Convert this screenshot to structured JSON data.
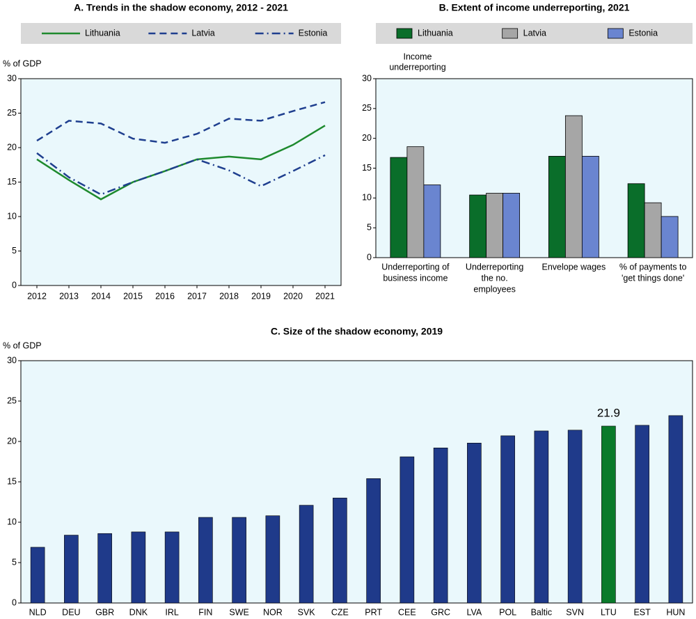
{
  "chart_data": [
    {
      "type": "line",
      "title": "A. Trends in the shadow economy, 2012 - 2021",
      "y_label": "% of GDP",
      "x": [
        2012,
        2013,
        2014,
        2015,
        2016,
        2017,
        2018,
        2019,
        2020,
        2021
      ],
      "series": [
        {
          "name": "Lithuania",
          "color": "#1e8a2e",
          "style": "solid",
          "values": [
            18.3,
            15.3,
            12.5,
            15.0,
            16.6,
            18.3,
            18.7,
            18.3,
            20.4,
            23.2
          ]
        },
        {
          "name": "Latvia",
          "color": "#1f3f8f",
          "style": "dashed",
          "values": [
            21.0,
            23.9,
            23.5,
            21.3,
            20.7,
            22.0,
            24.2,
            23.9,
            25.3,
            26.6
          ]
        },
        {
          "name": "Estonia",
          "color": "#1f3f8f",
          "style": "dashdot",
          "values": [
            19.2,
            15.7,
            13.2,
            15.0,
            16.6,
            18.3,
            16.7,
            14.4,
            16.6,
            18.9
          ]
        }
      ],
      "ylim": [
        0,
        30
      ],
      "yticks": [
        0,
        5,
        10,
        15,
        20,
        25,
        30
      ],
      "legend": "top"
    },
    {
      "type": "grouped_bar",
      "title": "B. Extent of income underreporting, 2021",
      "y_label": [
        "Income",
        "underreporting"
      ],
      "categories": [
        [
          "Underreporting of",
          "business income"
        ],
        [
          "Underreporting",
          "the no.",
          "employees"
        ],
        [
          "Envelope wages"
        ],
        [
          "% of payments to",
          "'get things done'"
        ]
      ],
      "series": [
        {
          "name": "Lithuania",
          "color": "#0a6e2a",
          "values": [
            16.8,
            10.5,
            17.0,
            12.4
          ]
        },
        {
          "name": "Latvia",
          "color": "#a6a6a6",
          "values": [
            18.6,
            10.8,
            23.8,
            9.2
          ]
        },
        {
          "name": "Estonia",
          "color": "#6a85d0",
          "values": [
            12.2,
            10.8,
            17.0,
            6.9
          ]
        }
      ],
      "ylim": [
        0,
        30
      ],
      "yticks": [
        0,
        5,
        10,
        15,
        20,
        25,
        30
      ],
      "legend": "top"
    },
    {
      "type": "bar",
      "title": "C. Size of the shadow economy, 2019",
      "y_label": "% of GDP",
      "categories": [
        "NLD",
        "DEU",
        "GBR",
        "DNK",
        "IRL",
        "FIN",
        "SWE",
        "NOR",
        "SVK",
        "CZE",
        "PRT",
        "CEE",
        "GRC",
        "LVA",
        "POL",
        "Baltic",
        "SVN",
        "LTU",
        "EST",
        "HUN"
      ],
      "values": [
        6.9,
        8.4,
        8.6,
        8.8,
        8.8,
        10.6,
        10.6,
        10.8,
        12.1,
        13.0,
        15.4,
        18.1,
        19.2,
        19.8,
        20.7,
        21.3,
        21.4,
        21.9,
        22.0,
        23.2
      ],
      "color": "#1f3a8a",
      "highlight": "LTU",
      "highlight_color": "#0a7a2a",
      "ylim": [
        0,
        30
      ],
      "yticks": [
        0,
        5,
        10,
        15,
        20,
        25,
        30
      ]
    }
  ]
}
